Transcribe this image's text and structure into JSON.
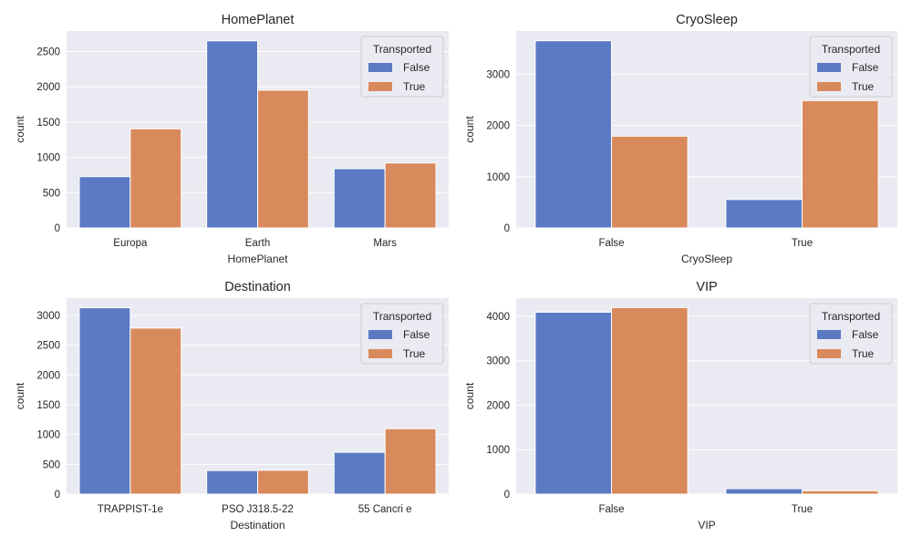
{
  "colors": {
    "false": "#5a7bc4",
    "true": "#d98a5c",
    "panel_bg": "#eaeaf2",
    "grid": "#ffffff"
  },
  "chart_data": [
    {
      "type": "bar",
      "title": "HomePlanet",
      "xlabel": "HomePlanet",
      "ylabel": "count",
      "categories": [
        "Europa",
        "Earth",
        "Mars"
      ],
      "series": [
        {
          "name": "False",
          "values": [
            727,
            2651,
            839
          ]
        },
        {
          "name": "True",
          "values": [
            1404,
            1951,
            920
          ]
        }
      ],
      "ylim": [
        0,
        2790
      ],
      "yticks": [
        0,
        500,
        1000,
        1500,
        2000,
        2500
      ],
      "legend": {
        "title": "Transported",
        "placement": "top-right"
      },
      "grid": true
    },
    {
      "type": "bar",
      "title": "CryoSleep",
      "xlabel": "CryoSleep",
      "ylabel": "count",
      "categories": [
        "False",
        "True"
      ],
      "series": [
        {
          "name": "False",
          "values": [
            3650,
            554
          ]
        },
        {
          "name": "True",
          "values": [
            1789,
            2483
          ]
        }
      ],
      "ylim": [
        0,
        3840
      ],
      "yticks": [
        0,
        1000,
        2000,
        3000
      ],
      "legend": {
        "title": "Transported",
        "placement": "top-right"
      },
      "grid": true
    },
    {
      "type": "bar",
      "title": "Destination",
      "xlabel": "Destination",
      "ylabel": "count",
      "categories": [
        "TRAPPIST-1e",
        "PSO J318.5-22",
        "55 Cancri e"
      ],
      "series": [
        {
          "name": "False",
          "values": [
            3128,
            395,
            702
          ]
        },
        {
          "name": "True",
          "values": [
            2787,
            401,
            1098
          ]
        }
      ],
      "ylim": [
        0,
        3290
      ],
      "yticks": [
        0,
        500,
        1000,
        1500,
        2000,
        2500,
        3000
      ],
      "legend": {
        "title": "Transported",
        "placement": "top-right"
      },
      "grid": true
    },
    {
      "type": "bar",
      "title": "VIP",
      "xlabel": "VIP",
      "ylabel": "count",
      "categories": [
        "False",
        "True"
      ],
      "series": [
        {
          "name": "False",
          "values": [
            4093,
            123
          ]
        },
        {
          "name": "True",
          "values": [
            4198,
            76
          ]
        }
      ],
      "ylim": [
        0,
        4410
      ],
      "yticks": [
        0,
        1000,
        2000,
        3000,
        4000
      ],
      "legend": {
        "title": "Transported",
        "placement": "top-right"
      },
      "grid": true
    }
  ]
}
